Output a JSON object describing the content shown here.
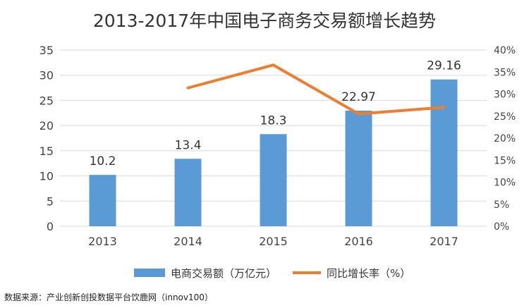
{
  "chart_data": {
    "type": "bar",
    "title": "2013-2017年中国电子商务交易额增长趋势",
    "categories": [
      "2013",
      "2014",
      "2015",
      "2016",
      "2017"
    ],
    "series": [
      {
        "name": "电商交易额（万亿元）",
        "kind": "bar",
        "axis": "left",
        "values": [
          10.2,
          13.4,
          18.3,
          22.97,
          29.16
        ],
        "labels": [
          "10.2",
          "13.4",
          "18.3",
          "22.97",
          "29.16"
        ],
        "color": "#5B9BD5"
      },
      {
        "name": "同比增长率（%）",
        "kind": "line",
        "axis": "right",
        "values": [
          null,
          31.4,
          36.6,
          25.5,
          27.0
        ],
        "color": "#ED7D31"
      }
    ],
    "y_left": {
      "min": 0,
      "max": 35,
      "ticks": [
        "0",
        "5",
        "10",
        "15",
        "20",
        "25",
        "30",
        "35"
      ]
    },
    "y_right": {
      "min": 0,
      "max": 40,
      "ticks": [
        "0%",
        "5%",
        "10%",
        "15%",
        "20%",
        "25%",
        "30%",
        "35%",
        "40%"
      ]
    },
    "grid": true,
    "legend_position": "bottom",
    "source_note": "数据来源：产业创新创投数据平台饮鹿网（innov100）"
  }
}
